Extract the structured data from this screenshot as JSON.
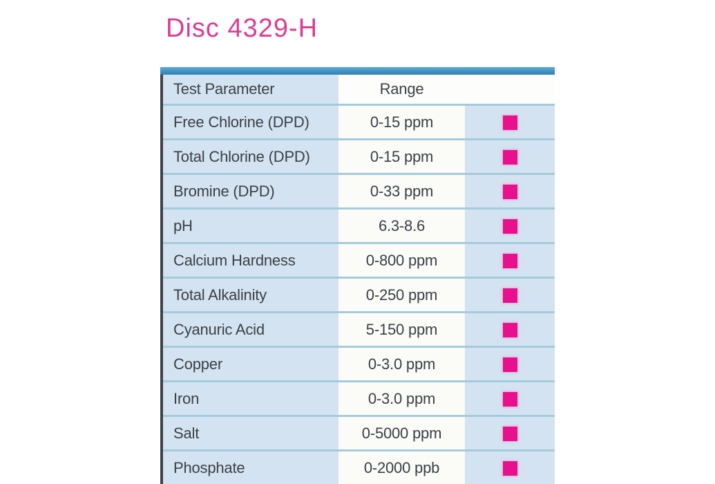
{
  "title": "Disc 4329-H",
  "table": {
    "headers": {
      "parameter": "Test Parameter",
      "range": "Range"
    },
    "rows": [
      {
        "parameter": "Free Chlorine (DPD)",
        "range": "0-15 ppm"
      },
      {
        "parameter": "Total Chlorine (DPD)",
        "range": "0-15 ppm"
      },
      {
        "parameter": "Bromine (DPD)",
        "range": "0-33 ppm"
      },
      {
        "parameter": "pH",
        "range": "6.3-8.6"
      },
      {
        "parameter": "Calcium Hardness",
        "range": "0-800 ppm"
      },
      {
        "parameter": "Total Alkalinity",
        "range": "0-250 ppm"
      },
      {
        "parameter": "Cyanuric Acid",
        "range": "5-150 ppm"
      },
      {
        "parameter": "Copper",
        "range": "0-3.0 ppm"
      },
      {
        "parameter": "Iron",
        "range": "0-3.0 ppm"
      },
      {
        "parameter": "Salt",
        "range": "0-5000 ppm"
      },
      {
        "parameter": "Phosphate",
        "range": "0-2000 ppb"
      }
    ],
    "indicator_icon": "pink-square"
  },
  "colors": {
    "title_pink": "#e03a92",
    "indicator_pink": "#e8108c",
    "accent_bar_blue": "#4292c5",
    "cell_blue": "#d4e3f1",
    "range_cell_white": "#fbfbf8",
    "row_separator_blue": "#a4cbdc",
    "table_left_border": "#3f444a",
    "text_dark": "#3b4046"
  }
}
